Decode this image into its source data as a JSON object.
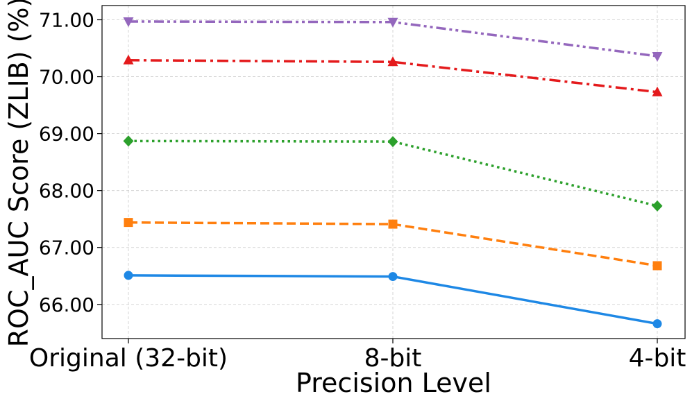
{
  "chart_data": {
    "type": "line",
    "title": "",
    "xlabel": "Precision Level",
    "ylabel": "ROC_AUC Score (ZLIB) (%)",
    "categories": [
      "Original (32-bit)",
      "8-bit",
      "4-bit"
    ],
    "ylim": [
      65.4,
      71.25
    ],
    "yticks": [
      66.0,
      67.0,
      68.0,
      69.0,
      70.0,
      71.0
    ],
    "ytick_labels": [
      "66.00",
      "67.00",
      "68.00",
      "69.00",
      "70.00",
      "71.00"
    ],
    "grid": true,
    "legend": "none",
    "series": [
      {
        "name": "series-1",
        "color": "#1e88e5",
        "dash": "solid",
        "marker": "circle",
        "values": [
          66.51,
          66.49,
          65.66
        ]
      },
      {
        "name": "series-2",
        "color": "#ff7f0e",
        "dash": "dashed",
        "marker": "square",
        "values": [
          67.44,
          67.41,
          66.68
        ]
      },
      {
        "name": "series-3",
        "color": "#2ca02c",
        "dash": "dotted",
        "marker": "diamond",
        "values": [
          68.87,
          68.86,
          67.73
        ]
      },
      {
        "name": "series-4",
        "color": "#e41a1c",
        "dash": "dashdot",
        "marker": "triangle-up",
        "values": [
          70.29,
          70.26,
          69.73
        ]
      },
      {
        "name": "series-5",
        "color": "#9467bd",
        "dash": "dashdotdot",
        "marker": "triangle-down",
        "values": [
          70.97,
          70.96,
          70.36
        ]
      }
    ]
  }
}
